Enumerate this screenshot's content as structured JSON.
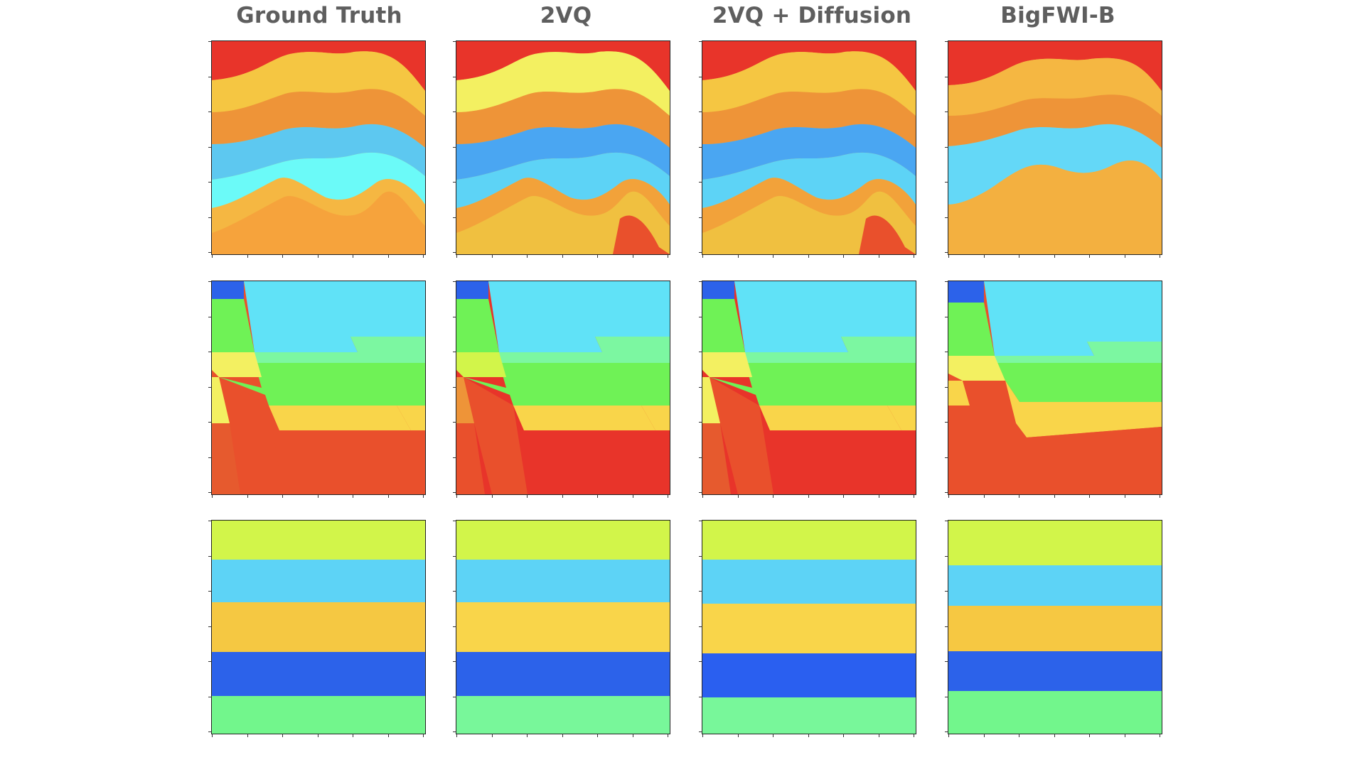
{
  "figure": {
    "column_titles": [
      "Ground Truth",
      "2VQ",
      "2VQ + Diffusion",
      "BigFWI-B"
    ],
    "rows": [
      {
        "name": "curved-layers",
        "description_type": "velocity-map"
      },
      {
        "name": "faulted-layers",
        "description_type": "velocity-map"
      },
      {
        "name": "flat-layers",
        "description_type": "velocity-map"
      }
    ],
    "colors": {
      "red": "#e8342a",
      "orange_red": "#e9502c",
      "orange": "#ee9438",
      "amber": "#f5b742",
      "yellow": "#f9d54a",
      "yellow_green": "#d2f54a",
      "light_yellow": "#f3f061",
      "green": "#6ff256",
      "mint": "#72f68c",
      "light_green": "#7cf7a1",
      "cyan": "#5dd3f6",
      "sky": "#60e2f7",
      "aqua": "#6bfaf8",
      "blue": "#2c62ea",
      "mid_blue": "#4aa6f2",
      "title_gray": "#5e5e5e"
    }
  }
}
